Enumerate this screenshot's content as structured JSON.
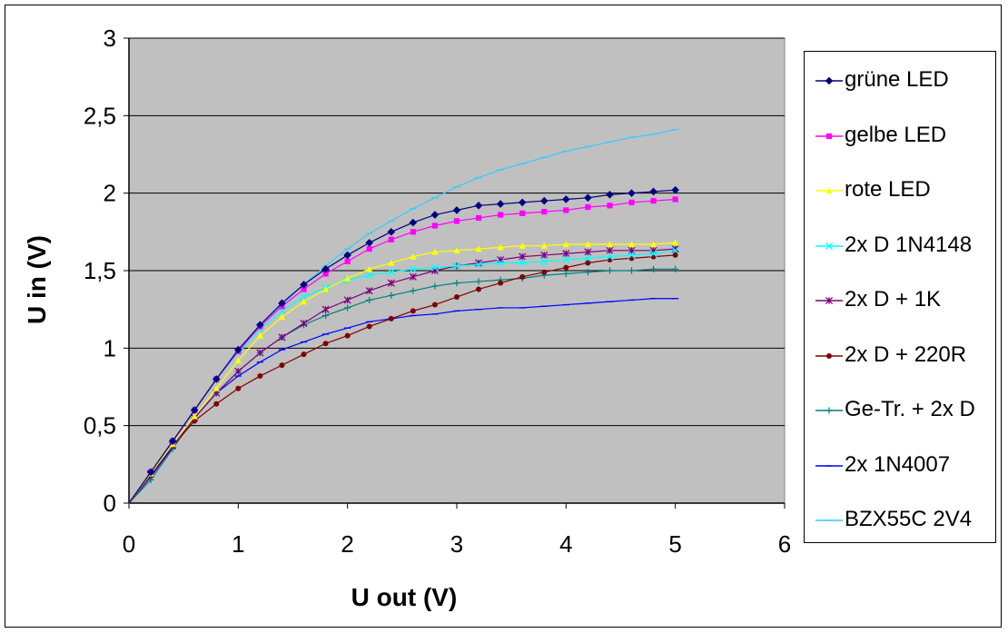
{
  "chart_data": {
    "type": "line",
    "title": "",
    "xlabel": "U out (V)",
    "ylabel": "U in (V)",
    "xlim": [
      0,
      6
    ],
    "ylim": [
      0,
      3
    ],
    "xticks": [
      "0",
      "1",
      "2",
      "3",
      "4",
      "5",
      "6"
    ],
    "yticks": [
      "0",
      "0,5",
      "1",
      "1,5",
      "2",
      "2,5",
      "3"
    ],
    "grid": "horizontal major gridlines",
    "plot_background": "#c0c0c0",
    "legend_position": "right",
    "x": [
      0,
      0.2,
      0.4,
      0.6,
      0.8,
      1.0,
      1.2,
      1.4,
      1.6,
      1.8,
      2.0,
      2.2,
      2.4,
      2.6,
      2.8,
      3.0,
      3.2,
      3.4,
      3.6,
      3.8,
      4.0,
      4.2,
      4.4,
      4.6,
      4.8,
      5.0
    ],
    "series": [
      {
        "name": "grüne LED",
        "color": "#000080",
        "marker": "diamond",
        "values": [
          0,
          0.2,
          0.4,
          0.6,
          0.8,
          0.99,
          1.15,
          1.29,
          1.41,
          1.51,
          1.6,
          1.68,
          1.75,
          1.81,
          1.86,
          1.89,
          1.92,
          1.93,
          1.94,
          1.95,
          1.96,
          1.97,
          1.99,
          2.0,
          2.01,
          2.02
        ]
      },
      {
        "name": "gelbe LED",
        "color": "#ff00ff",
        "marker": "square",
        "values": [
          0,
          0.2,
          0.4,
          0.6,
          0.8,
          0.98,
          1.14,
          1.27,
          1.38,
          1.48,
          1.56,
          1.64,
          1.7,
          1.75,
          1.79,
          1.82,
          1.84,
          1.86,
          1.87,
          1.88,
          1.89,
          1.91,
          1.92,
          1.94,
          1.95,
          1.96
        ]
      },
      {
        "name": "rote LED",
        "color": "#ffff00",
        "marker": "triangle",
        "values": [
          0,
          0.19,
          0.38,
          0.56,
          0.74,
          0.92,
          1.08,
          1.2,
          1.3,
          1.38,
          1.45,
          1.51,
          1.55,
          1.59,
          1.62,
          1.63,
          1.64,
          1.65,
          1.66,
          1.66,
          1.67,
          1.67,
          1.67,
          1.67,
          1.67,
          1.68
        ]
      },
      {
        "name": "2x D 1N4148",
        "color": "#00ffff",
        "marker": "x",
        "values": [
          0,
          0.2,
          0.4,
          0.6,
          0.8,
          0.97,
          1.12,
          1.24,
          1.33,
          1.39,
          1.44,
          1.47,
          1.49,
          1.51,
          1.52,
          1.53,
          1.54,
          1.55,
          1.55,
          1.56,
          1.57,
          1.58,
          1.59,
          1.6,
          1.61,
          1.63
        ]
      },
      {
        "name": "2x D +   1K",
        "color": "#800080",
        "marker": "star",
        "values": [
          0,
          0.19,
          0.37,
          0.55,
          0.71,
          0.85,
          0.97,
          1.07,
          1.16,
          1.25,
          1.31,
          1.37,
          1.42,
          1.46,
          1.5,
          1.53,
          1.55,
          1.57,
          1.59,
          1.6,
          1.61,
          1.62,
          1.63,
          1.63,
          1.63,
          1.64
        ]
      },
      {
        "name": "2x D + 220R",
        "color": "#800000",
        "marker": "circle",
        "values": [
          0,
          0.18,
          0.37,
          0.53,
          0.64,
          0.74,
          0.82,
          0.89,
          0.96,
          1.03,
          1.08,
          1.14,
          1.19,
          1.24,
          1.28,
          1.33,
          1.38,
          1.42,
          1.46,
          1.49,
          1.52,
          1.55,
          1.57,
          1.58,
          1.59,
          1.6
        ]
      },
      {
        "name": "Ge-Tr. + 2x D",
        "color": "#008080",
        "marker": "plus",
        "values": [
          0,
          0.15,
          0.35,
          0.55,
          0.71,
          0.85,
          0.97,
          1.07,
          1.15,
          1.21,
          1.26,
          1.31,
          1.34,
          1.37,
          1.4,
          1.42,
          1.43,
          1.44,
          1.45,
          1.47,
          1.48,
          1.49,
          1.5,
          1.5,
          1.51,
          1.51
        ]
      },
      {
        "name": "2x 1N4007",
        "color": "#0000ff",
        "marker": "dash",
        "values": [
          0,
          0.17,
          0.36,
          0.55,
          0.71,
          0.82,
          0.91,
          0.99,
          1.04,
          1.09,
          1.13,
          1.17,
          1.19,
          1.21,
          1.22,
          1.24,
          1.25,
          1.26,
          1.26,
          1.27,
          1.28,
          1.29,
          1.3,
          1.31,
          1.32,
          1.32
        ]
      },
      {
        "name": "BZX55C 2V4",
        "color": "#33ccff",
        "marker": "dash",
        "values": [
          0,
          0.2,
          0.4,
          0.6,
          0.8,
          0.98,
          1.15,
          1.28,
          1.41,
          1.53,
          1.64,
          1.74,
          1.82,
          1.9,
          1.97,
          2.04,
          2.1,
          2.15,
          2.19,
          2.23,
          2.27,
          2.3,
          2.33,
          2.36,
          2.38,
          2.41
        ]
      }
    ]
  }
}
